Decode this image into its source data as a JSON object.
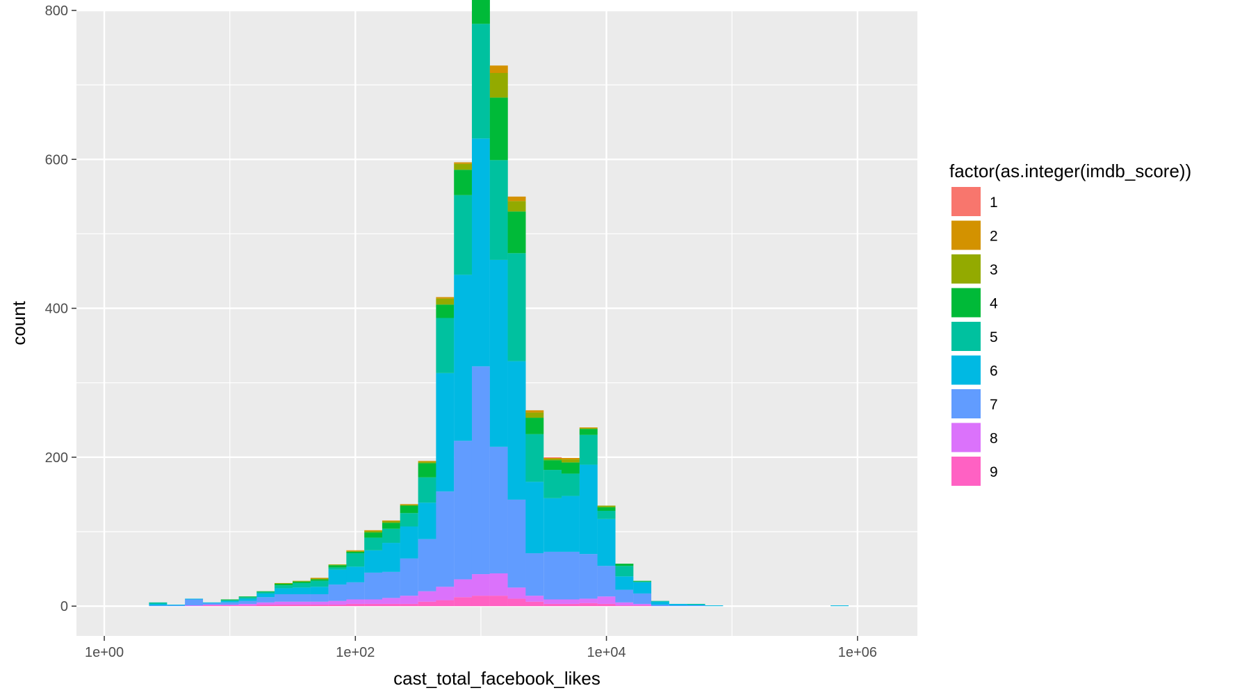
{
  "chart_data": {
    "type": "bar",
    "stacked": true,
    "x_scale": "log10",
    "xlabel": "cast_total_facebook_likes",
    "ylabel": "count",
    "xlim": [
      0.6,
      3000000
    ],
    "ylim": [
      -40,
      800
    ],
    "x_ticks": [
      {
        "value": 1,
        "label": "1e+00"
      },
      {
        "value": 100,
        "label": "1e+02"
      },
      {
        "value": 10000,
        "label": "1e+04"
      },
      {
        "value": 1000000,
        "label": "1e+06"
      }
    ],
    "y_ticks": [
      0,
      200,
      400,
      600,
      800
    ],
    "grid": true,
    "legend": {
      "title": "factor(as.integer(imdb_score))",
      "position": "right",
      "entries": [
        "1",
        "2",
        "3",
        "4",
        "5",
        "6",
        "7",
        "8",
        "9"
      ]
    },
    "colors": [
      "#F8766D",
      "#D39200",
      "#93AA00",
      "#00BA38",
      "#00C19F",
      "#00B9E3",
      "#619CFF",
      "#DB72FB",
      "#FF61C3"
    ],
    "bins": [
      {
        "x": 2.68,
        "values": [
          0,
          0,
          0,
          0,
          2,
          2,
          1,
          0,
          0
        ]
      },
      {
        "x": 3.73,
        "values": [
          0,
          0,
          0,
          0,
          0,
          1,
          1,
          0,
          0
        ]
      },
      {
        "x": 5.18,
        "values": [
          0,
          0,
          0,
          0,
          0,
          1,
          8,
          1,
          0
        ]
      },
      {
        "x": 7.2,
        "values": [
          0,
          0,
          0,
          0,
          0,
          1,
          2,
          1,
          1
        ]
      },
      {
        "x": 10.0,
        "values": [
          0,
          0,
          0,
          1,
          1,
          2,
          3,
          1,
          1
        ]
      },
      {
        "x": 13.9,
        "values": [
          0,
          0,
          0,
          1,
          2,
          3,
          4,
          2,
          1
        ]
      },
      {
        "x": 19.3,
        "values": [
          0,
          0,
          0,
          1,
          2,
          5,
          7,
          3,
          2
        ]
      },
      {
        "x": 26.8,
        "values": [
          0,
          0,
          1,
          2,
          4,
          8,
          10,
          4,
          2
        ]
      },
      {
        "x": 37.3,
        "values": [
          0,
          0,
          1,
          2,
          6,
          9,
          10,
          4,
          2
        ]
      },
      {
        "x": 51.8,
        "values": [
          0,
          1,
          1,
          2,
          8,
          10,
          10,
          4,
          2
        ]
      },
      {
        "x": 72.0,
        "values": [
          0,
          0,
          1,
          3,
          3,
          20,
          22,
          5,
          2
        ]
      },
      {
        "x": 100,
        "values": [
          0,
          1,
          1,
          2,
          18,
          21,
          23,
          6,
          3
        ]
      },
      {
        "x": 139,
        "values": [
          0,
          1,
          2,
          7,
          17,
          30,
          36,
          6,
          3
        ]
      },
      {
        "x": 193,
        "values": [
          0,
          1,
          2,
          8,
          19,
          39,
          35,
          8,
          3
        ]
      },
      {
        "x": 268,
        "values": [
          0,
          1,
          1,
          10,
          18,
          43,
          50,
          11,
          3
        ]
      },
      {
        "x": 373,
        "values": [
          0,
          1,
          2,
          19,
          34,
          49,
          70,
          14,
          6
        ]
      },
      {
        "x": 518,
        "values": [
          0,
          2,
          8,
          18,
          74,
          159,
          128,
          18,
          8
        ]
      },
      {
        "x": 720,
        "values": [
          0,
          2,
          8,
          34,
          107,
          223,
          186,
          24,
          12
        ]
      },
      {
        "x": 1000,
        "values": [
          0,
          2,
          20,
          40,
          154,
          306,
          279,
          29,
          14
        ]
      },
      {
        "x": 1390,
        "values": [
          0,
          10,
          33,
          84,
          134,
          251,
          170,
          30,
          14
        ]
      },
      {
        "x": 1930,
        "values": [
          0,
          6,
          14,
          56,
          145,
          186,
          118,
          15,
          10
        ]
      },
      {
        "x": 2680,
        "values": [
          0,
          3,
          7,
          22,
          64,
          96,
          57,
          8,
          6
        ]
      },
      {
        "x": 3730,
        "values": [
          1,
          1,
          2,
          13,
          38,
          72,
          64,
          6,
          3
        ]
      },
      {
        "x": 5180,
        "values": [
          0,
          2,
          4,
          15,
          30,
          75,
          64,
          6,
          3
        ]
      },
      {
        "x": 7200,
        "values": [
          0,
          1,
          1,
          8,
          40,
          120,
          60,
          6,
          4
        ]
      },
      {
        "x": 10000,
        "values": [
          0,
          0,
          2,
          5,
          11,
          63,
          41,
          10,
          3
        ]
      },
      {
        "x": 13900,
        "values": [
          0,
          0,
          0,
          3,
          14,
          18,
          17,
          4,
          1
        ]
      },
      {
        "x": 19300,
        "values": [
          0,
          0,
          0,
          1,
          1,
          15,
          14,
          2,
          1
        ]
      },
      {
        "x": 26800,
        "values": [
          0,
          0,
          0,
          0,
          1,
          4,
          2,
          0,
          0
        ]
      },
      {
        "x": 37300,
        "values": [
          0,
          0,
          0,
          0,
          0,
          2,
          1,
          0,
          0
        ]
      },
      {
        "x": 51800,
        "values": [
          0,
          0,
          0,
          0,
          1,
          1,
          1,
          0,
          0
        ]
      },
      {
        "x": 72000,
        "values": [
          0,
          0,
          0,
          0,
          0,
          1,
          0,
          0,
          0
        ]
      },
      {
        "x": 100000,
        "values": [
          0,
          0,
          0,
          0,
          0,
          0,
          0,
          0,
          0
        ]
      },
      {
        "x": 139000,
        "values": [
          0,
          0,
          0,
          0,
          0,
          0,
          0,
          0,
          0
        ]
      },
      {
        "x": 193000,
        "values": [
          0,
          0,
          0,
          0,
          0,
          0,
          0,
          0,
          0
        ]
      },
      {
        "x": 268000,
        "values": [
          0,
          0,
          0,
          0,
          0,
          0,
          0,
          0,
          0
        ]
      },
      {
        "x": 373000,
        "values": [
          0,
          0,
          0,
          0,
          0,
          0,
          0,
          0,
          0
        ]
      },
      {
        "x": 518000,
        "values": [
          0,
          0,
          0,
          0,
          0,
          0,
          0,
          0,
          0
        ]
      },
      {
        "x": 720000,
        "values": [
          0,
          0,
          0,
          0,
          0,
          1,
          0,
          0,
          0
        ]
      }
    ]
  }
}
